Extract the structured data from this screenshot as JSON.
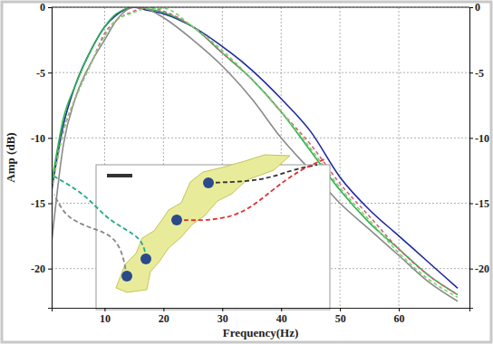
{
  "chart_data": {
    "type": "line",
    "x_label": "Frequency(Hz)",
    "y_label": "Amp (dB)",
    "x": [
      1,
      3,
      5,
      8,
      10,
      12,
      15,
      17,
      20,
      25,
      30,
      35,
      40,
      45,
      50,
      55,
      60,
      65,
      70
    ],
    "xlim": [
      1,
      72
    ],
    "xticks": [
      10,
      20,
      30,
      40,
      50,
      60
    ],
    "ylim": [
      -23,
      0
    ],
    "yticks": [
      0,
      -5,
      -10,
      -15,
      -20
    ],
    "y2lim": [
      -23,
      0
    ],
    "y2ticks": [
      0,
      -5,
      -10,
      -15,
      -20
    ],
    "grid": true,
    "series": [
      {
        "color": "#1f2a9c",
        "line_style": "solid",
        "values": [
          -14,
          -9,
          -6,
          -3,
          -1.5,
          -0.6,
          0,
          -0.2,
          -0.5,
          -1.5,
          -3,
          -4.8,
          -7,
          -9.5,
          -13,
          -15.5,
          -17.5,
          -19.5,
          -21.5
        ]
      },
      {
        "color": "#2db34a",
        "line_style": "solid",
        "values": [
          -13.5,
          -8.5,
          -6,
          -3,
          -1.5,
          -0.5,
          0,
          -0.1,
          -0.4,
          -1.5,
          -3.5,
          -5.5,
          -8,
          -11,
          -14,
          -16.5,
          -18.5,
          -20.5,
          -22
        ]
      },
      {
        "color": "#8a8a8a",
        "line_style": "solid",
        "values": [
          -18,
          -10.5,
          -7,
          -4,
          -2.5,
          -1,
          0,
          -0.1,
          -0.8,
          -2.5,
          -4.5,
          -7,
          -10,
          -12.5,
          -15,
          -17,
          -19,
          -21,
          -22.5
        ]
      },
      {
        "color": "#d06080",
        "line_style": "dashed",
        "values": [
          -14,
          -9.5,
          -7,
          -4,
          -2,
          -1,
          -0.3,
          0,
          -0.3,
          -1.5,
          -3.5,
          -5.5,
          -8,
          -10.5,
          -13.5,
          -16,
          -18.5,
          -20.5,
          -22
        ]
      },
      {
        "color": "#7fcf6f",
        "line_style": "dashed",
        "values": [
          -14,
          -9.5,
          -7,
          -4,
          -2.2,
          -1,
          -0.4,
          -0.1,
          -0.1,
          -1.5,
          -3.3,
          -5.5,
          -8,
          -10.8,
          -13.8,
          -16.3,
          -18.8,
          -20.8,
          -22.2
        ]
      }
    ]
  }
}
